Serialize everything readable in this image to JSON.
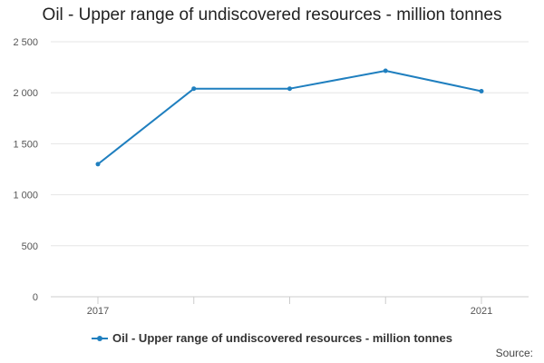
{
  "chart_data": {
    "type": "line",
    "title": "Oil - Upper range of undiscovered resources - million tonnes",
    "x": [
      2017,
      2018,
      2019,
      2020,
      2021
    ],
    "x_tick_labels": [
      "2017",
      "",
      "",
      "",
      "2021"
    ],
    "series": [
      {
        "name": "Oil - Upper range of undiscovered resources - million tonnes",
        "values": [
          1300,
          2040,
          2040,
          2215,
          2015
        ]
      }
    ],
    "ylim": [
      0,
      2500
    ],
    "y_ticks": [
      0,
      500,
      1000,
      1500,
      2000,
      2500
    ],
    "y_tick_labels": [
      "0",
      "500",
      "1 000",
      "1 500",
      "2 000",
      "2 500"
    ],
    "grid": true,
    "legend_position": "bottom",
    "line_color": "#1f7fbf"
  },
  "footer": {
    "source_label": "Source:"
  }
}
